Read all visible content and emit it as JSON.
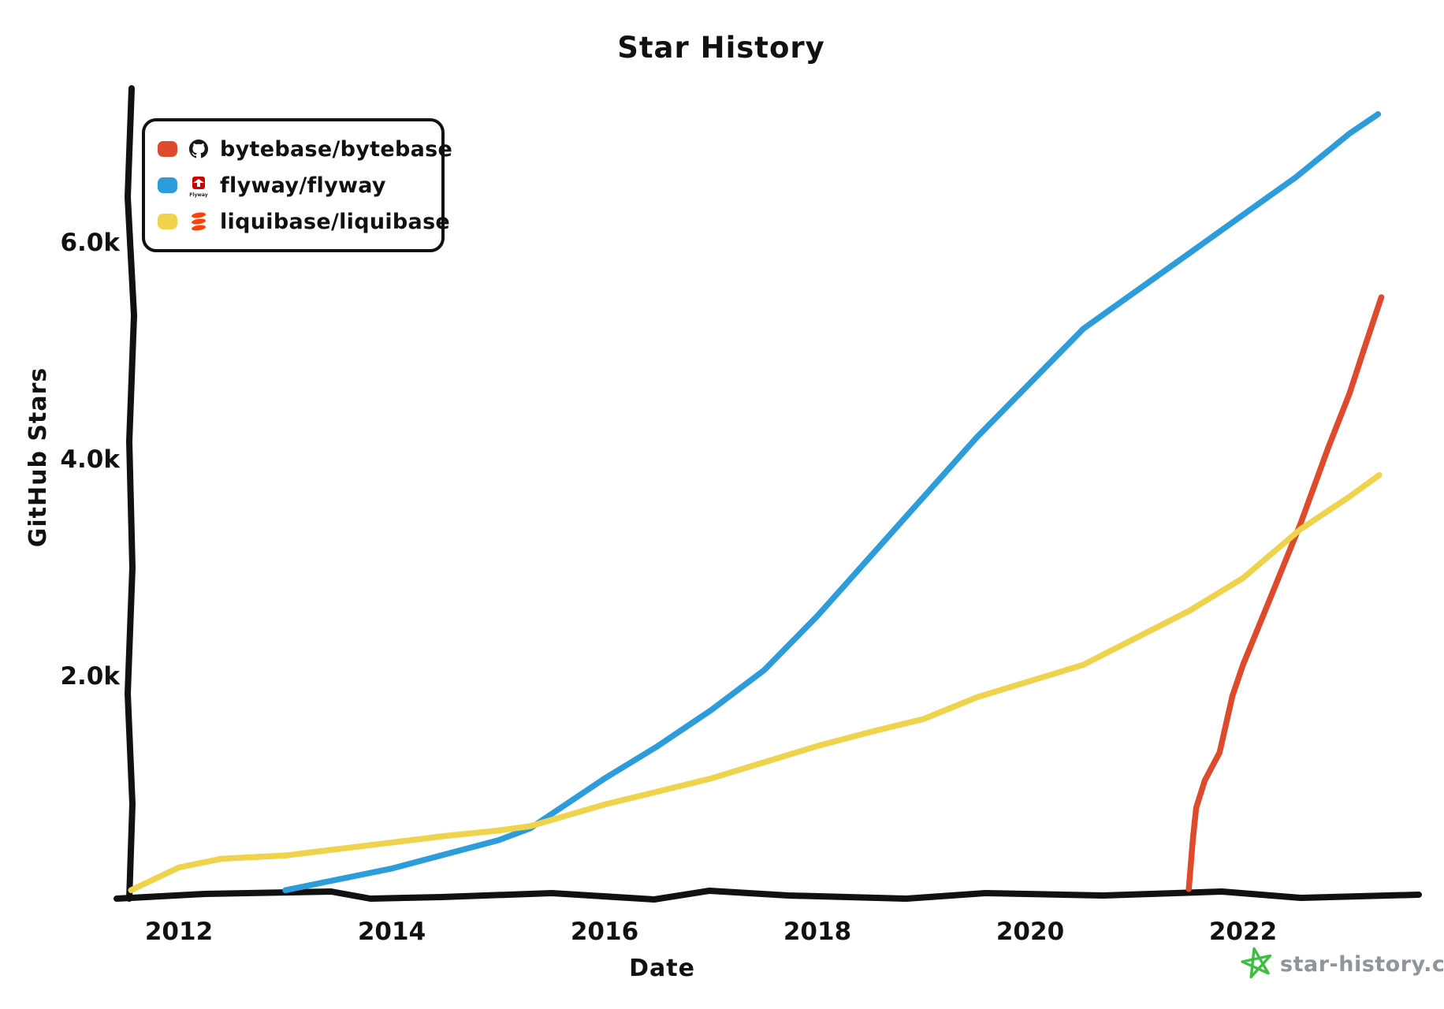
{
  "title": "Star History",
  "x_axis_label": "Date",
  "y_axis_label": "GitHub Stars",
  "watermark": "star-history.com",
  "colors": {
    "bytebase": "#DE4A2B",
    "flyway": "#2D9CDB",
    "liquibase": "#EFD34D",
    "axis": "#111111",
    "watermark_text": "#8F959A",
    "watermark_star": "#3BBF3F",
    "flyway_logo_red": "#CC0200",
    "liquibase_logo_orange": "#FF4108",
    "github_mark_black": "#191717"
  },
  "legend": {
    "items": [
      {
        "label": "bytebase/bytebase",
        "color": "#DE4A2B",
        "icon": "github-mark-icon",
        "icon_text": ""
      },
      {
        "label": "flyway/flyway",
        "color": "#2D9CDB",
        "icon": "flyway-logo-icon",
        "icon_text": "Flyway"
      },
      {
        "label": "liquibase/liquibase",
        "color": "#EFD34D",
        "icon": "liquibase-logo-icon",
        "icon_text": ""
      }
    ]
  },
  "chart_data": {
    "type": "line",
    "title": "Star History",
    "xlabel": "Date",
    "ylabel": "GitHub Stars",
    "x_ticks": [
      2012,
      2014,
      2016,
      2018,
      2020,
      2022
    ],
    "y_ticks": [
      {
        "label": "2.0k",
        "value": 2000
      },
      {
        "label": "4.0k",
        "value": 4000
      },
      {
        "label": "6.0k",
        "value": 6000
      }
    ],
    "xlim": [
      2011.4,
      2023.6
    ],
    "ylim": [
      0,
      7400
    ],
    "grid": false,
    "legend_position": "top-left",
    "series": [
      {
        "name": "bytebase/bytebase",
        "color": "#DE4A2B",
        "points": [
          [
            2021.49,
            30
          ],
          [
            2021.53,
            500
          ],
          [
            2021.56,
            780
          ],
          [
            2021.64,
            1030
          ],
          [
            2021.78,
            1290
          ],
          [
            2021.9,
            1810
          ],
          [
            2022.0,
            2100
          ],
          [
            2022.25,
            2700
          ],
          [
            2022.54,
            3400
          ],
          [
            2022.8,
            4100
          ],
          [
            2023.0,
            4600
          ],
          [
            2023.15,
            5050
          ],
          [
            2023.3,
            5490
          ]
        ]
      },
      {
        "name": "flyway/flyway",
        "color": "#2D9CDB",
        "points": [
          [
            2013.0,
            20
          ],
          [
            2013.5,
            120
          ],
          [
            2014.0,
            220
          ],
          [
            2014.5,
            350
          ],
          [
            2015.0,
            480
          ],
          [
            2015.3,
            590
          ],
          [
            2016.0,
            1050
          ],
          [
            2016.5,
            1350
          ],
          [
            2017.0,
            1680
          ],
          [
            2017.5,
            2050
          ],
          [
            2018.0,
            2550
          ],
          [
            2018.5,
            3100
          ],
          [
            2019.0,
            3650
          ],
          [
            2019.5,
            4200
          ],
          [
            2020.0,
            4700
          ],
          [
            2020.5,
            5200
          ],
          [
            2021.0,
            5550
          ],
          [
            2021.5,
            5900
          ],
          [
            2022.0,
            6250
          ],
          [
            2022.5,
            6600
          ],
          [
            2023.0,
            7000
          ],
          [
            2023.27,
            7180
          ]
        ]
      },
      {
        "name": "liquibase/liquibase",
        "color": "#EFD34D",
        "points": [
          [
            2011.55,
            20
          ],
          [
            2012.0,
            230
          ],
          [
            2012.4,
            310
          ],
          [
            2013.0,
            340
          ],
          [
            2013.5,
            400
          ],
          [
            2014.0,
            460
          ],
          [
            2014.5,
            520
          ],
          [
            2015.0,
            570
          ],
          [
            2015.3,
            610
          ],
          [
            2016.0,
            810
          ],
          [
            2016.5,
            930
          ],
          [
            2017.0,
            1050
          ],
          [
            2017.5,
            1200
          ],
          [
            2018.0,
            1350
          ],
          [
            2018.5,
            1480
          ],
          [
            2019.0,
            1600
          ],
          [
            2019.5,
            1800
          ],
          [
            2020.0,
            1950
          ],
          [
            2020.5,
            2100
          ],
          [
            2021.0,
            2350
          ],
          [
            2021.5,
            2600
          ],
          [
            2022.0,
            2900
          ],
          [
            2022.54,
            3350
          ],
          [
            2023.0,
            3650
          ],
          [
            2023.28,
            3850
          ]
        ]
      }
    ]
  }
}
